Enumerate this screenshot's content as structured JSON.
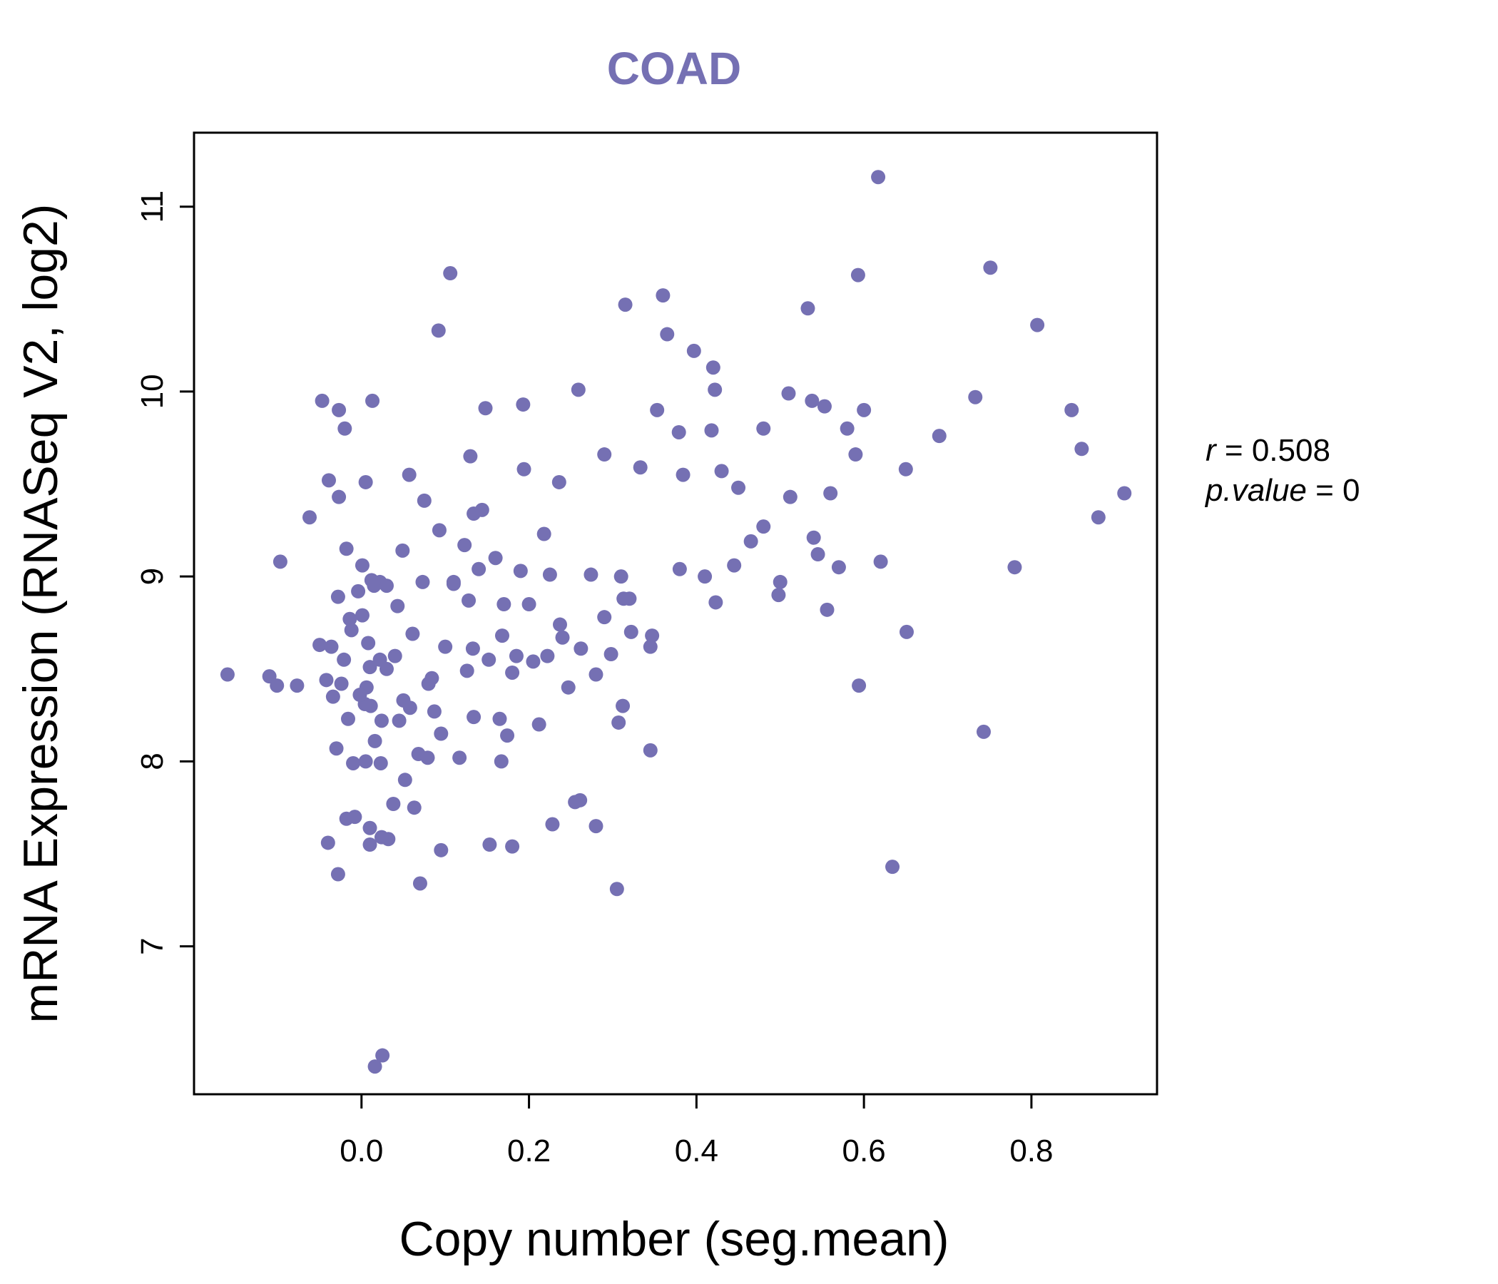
{
  "chart_data": {
    "type": "scatter",
    "title": "COAD",
    "xlabel": "Copy number (seg.mean)",
    "ylabel": "mRNA Expression (RNASeq V2, log2)",
    "xlim": [
      -0.2,
      0.95
    ],
    "ylim": [
      6.2,
      11.4
    ],
    "x_ticks": [
      0.0,
      0.2,
      0.4,
      0.6,
      0.8
    ],
    "x_tick_labels": [
      "0.0",
      "0.2",
      "0.4",
      "0.6",
      "0.8"
    ],
    "y_ticks": [
      7,
      8,
      9,
      10,
      11
    ],
    "y_tick_labels": [
      "7",
      "8",
      "9",
      "10",
      "11"
    ],
    "stats": {
      "r_label": "r",
      "r_value": "0.508",
      "p_label": "p.value",
      "p_value": "0"
    },
    "point_color": "#7570b3",
    "grid": false,
    "legend": "none",
    "series": [
      {
        "x": [
          0.617,
          0.106,
          0.751,
          0.593,
          0.36,
          0.315,
          0.533,
          0.092,
          0.807,
          0.365,
          -0.047,
          -0.027,
          0.013,
          -0.02,
          0.148,
          0.193,
          0.259,
          0.42,
          0.397,
          0.422,
          0.51,
          0.538,
          0.553,
          0.6,
          0.733,
          0.848,
          0.057,
          0.13,
          0.194,
          0.29,
          0.333,
          0.236,
          -0.039,
          0.005,
          -0.062,
          -0.027,
          0.075,
          0.134,
          0.144,
          0.218,
          0.353,
          0.379,
          0.418,
          0.45,
          0.48,
          0.54,
          0.58,
          0.59,
          0.65,
          0.69,
          0.86,
          0.88,
          0.911,
          -0.097,
          -0.018,
          0.001,
          0.012,
          0.049,
          0.093,
          0.123,
          0.16,
          0.19,
          0.225,
          0.274,
          0.32,
          0.38,
          0.41,
          0.445,
          0.5,
          0.545,
          0.57,
          0.62,
          0.78,
          -0.028,
          -0.004,
          0.022,
          0.043,
          0.073,
          0.11,
          0.128,
          0.17,
          0.2,
          0.237,
          0.29,
          0.313,
          0.347,
          0.423,
          0.48,
          0.556,
          0.651,
          -0.05,
          -0.036,
          -0.014,
          0.008,
          0.022,
          0.04,
          0.061,
          0.08,
          0.1,
          0.133,
          0.152,
          0.185,
          0.24,
          0.262,
          0.298,
          0.345,
          -0.16,
          -0.11,
          -0.077,
          -0.042,
          -0.024,
          0.01,
          0.03,
          0.05,
          0.087,
          0.126,
          0.18,
          0.222,
          0.28,
          0.312,
          -0.034,
          -0.016,
          0.011,
          0.024,
          0.058,
          0.095,
          0.134,
          0.165,
          0.174,
          0.212,
          0.307,
          0.594,
          0.743,
          -0.101,
          -0.03,
          -0.01,
          0.005,
          0.023,
          0.045,
          0.068,
          0.079,
          0.117,
          0.167,
          0.345,
          -0.04,
          -0.018,
          0.01,
          0.032,
          0.07,
          0.18,
          0.261,
          0.634,
          0.016,
          0.025,
          -0.028,
          0.01,
          0.038,
          0.063,
          -0.012,
          0.001,
          0.015,
          -0.021,
          0.03,
          0.084,
          0.11,
          0.14,
          0.168,
          0.205,
          0.247,
          0.31,
          0.384,
          0.43,
          0.465,
          0.498,
          0.512,
          0.56,
          0.004,
          0.006,
          -0.002,
          0.016,
          0.024,
          -0.008,
          0.052,
          0.095,
          0.153,
          0.228,
          0.255,
          0.28,
          0.305,
          0.322
        ],
        "y": [
          11.16,
          10.64,
          10.67,
          10.63,
          10.52,
          10.47,
          10.45,
          10.33,
          10.36,
          10.31,
          9.95,
          9.9,
          9.95,
          9.8,
          9.91,
          9.93,
          10.01,
          10.13,
          10.22,
          10.01,
          9.99,
          9.95,
          9.92,
          9.9,
          9.97,
          9.9,
          9.55,
          9.65,
          9.58,
          9.66,
          9.59,
          9.51,
          9.52,
          9.51,
          9.32,
          9.43,
          9.41,
          9.34,
          9.36,
          9.23,
          9.9,
          9.78,
          9.79,
          9.48,
          9.8,
          9.21,
          9.8,
          9.66,
          9.58,
          9.76,
          9.69,
          9.32,
          9.45,
          9.08,
          9.15,
          9.06,
          8.98,
          9.14,
          9.25,
          9.17,
          9.1,
          9.03,
          9.01,
          9.01,
          8.88,
          9.04,
          9.0,
          9.06,
          8.97,
          9.12,
          9.05,
          9.08,
          9.05,
          8.89,
          8.92,
          8.97,
          8.84,
          8.97,
          8.96,
          8.87,
          8.85,
          8.85,
          8.74,
          8.78,
          8.88,
          8.68,
          8.86,
          9.27,
          8.82,
          8.7,
          8.63,
          8.62,
          8.77,
          8.64,
          8.55,
          8.57,
          8.69,
          8.42,
          8.62,
          8.61,
          8.55,
          8.57,
          8.67,
          8.61,
          8.58,
          8.62,
          8.47,
          8.46,
          8.41,
          8.44,
          8.42,
          8.51,
          8.5,
          8.33,
          8.27,
          8.49,
          8.48,
          8.57,
          8.47,
          8.3,
          8.35,
          8.23,
          8.3,
          8.22,
          8.29,
          8.15,
          8.24,
          8.23,
          8.14,
          8.2,
          8.21,
          8.41,
          8.16,
          8.41,
          8.07,
          7.99,
          8.0,
          7.99,
          8.22,
          8.04,
          8.02,
          8.02,
          8.0,
          8.06,
          7.56,
          7.69,
          7.55,
          7.58,
          7.34,
          7.54,
          7.79,
          7.43,
          6.35,
          6.41,
          7.39,
          7.64,
          7.77,
          7.75,
          8.71,
          8.79,
          8.95,
          8.55,
          8.95,
          8.45,
          8.97,
          9.04,
          8.68,
          8.54,
          8.4,
          9.0,
          9.55,
          9.57,
          9.19,
          8.9,
          9.43,
          9.45,
          8.31,
          8.4,
          8.36,
          8.11,
          7.59,
          7.7,
          7.9,
          7.52,
          7.55,
          7.66,
          7.78,
          7.65,
          7.31,
          8.7
        ]
      }
    ]
  }
}
